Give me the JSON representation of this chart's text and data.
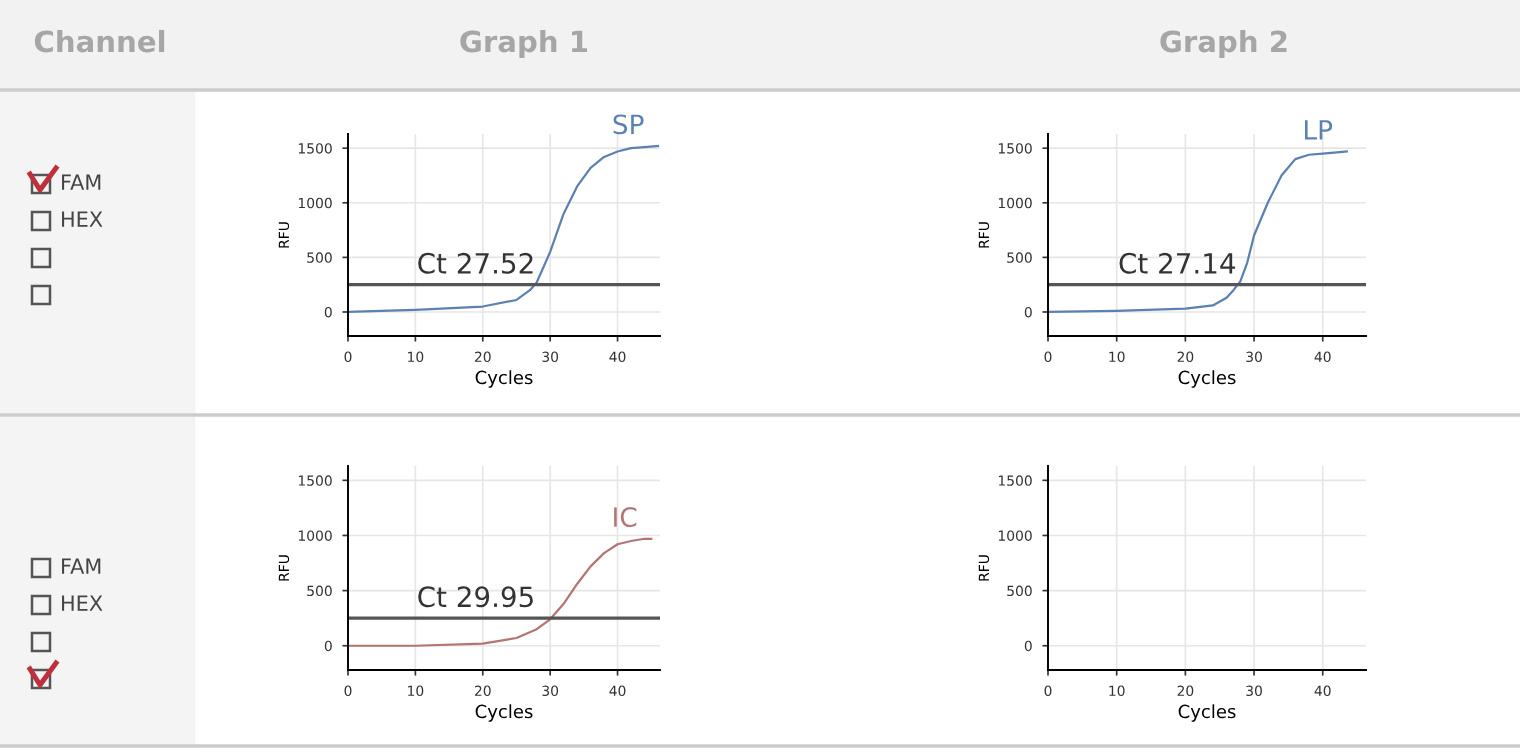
{
  "chart_data": [
    {
      "type": "other",
      "title": "Channel",
      "annotations": [
        "FAM",
        "HEX"
      ]
    },
    {
      "type": "line",
      "title": "Graph 1",
      "xlabel": "Cycles",
      "ylabel": "RFU",
      "xlim": [
        0,
        46.3
      ],
      "ylim": [
        -220,
        1630
      ],
      "xticks": [
        0,
        10,
        20,
        30,
        40
      ],
      "yticks": [
        0,
        500,
        1000,
        1500
      ],
      "grid": true,
      "series": [
        {
          "name": "SP",
          "color": "#5b80b2",
          "x": [
            0,
            10,
            20,
            25,
            27,
            28,
            30,
            32,
            34,
            36,
            38,
            40,
            42,
            44,
            46
          ],
          "values": [
            0,
            20,
            50,
            110,
            200,
            270,
            550,
            900,
            1150,
            1320,
            1420,
            1470,
            1500,
            1510,
            1520
          ]
        }
      ],
      "ref_lines": [
        {
          "axis": "y",
          "value": 250,
          "label": "Ct 27.52",
          "color": "#555555"
        }
      ]
    },
    {
      "type": "line",
      "title": "Graph 2",
      "xlabel": "Cycles",
      "ylabel": "RFU",
      "xlim": [
        0,
        46.3
      ],
      "ylim": [
        -220,
        1630
      ],
      "xticks": [
        0,
        10,
        20,
        30,
        40
      ],
      "yticks": [
        0,
        500,
        1000,
        1500
      ],
      "grid": true,
      "series": [
        {
          "name": "LP",
          "color": "#5b80b2",
          "x": [
            0,
            10,
            20,
            24,
            26,
            27,
            28,
            29,
            30,
            32,
            34,
            36,
            38,
            40,
            43.5
          ],
          "values": [
            0,
            10,
            30,
            60,
            130,
            200,
            280,
            450,
            700,
            1000,
            1250,
            1400,
            1440,
            1450,
            1470
          ]
        }
      ],
      "ref_lines": [
        {
          "axis": "y",
          "value": 250,
          "label": "Ct 27.14",
          "color": "#555555"
        }
      ]
    },
    {
      "type": "other",
      "annotations": [
        "FAM",
        "HEX"
      ]
    },
    {
      "type": "line",
      "xlabel": "Cycles",
      "ylabel": "RFU",
      "xlim": [
        0,
        46.3
      ],
      "ylim": [
        -220,
        1630
      ],
      "xticks": [
        0,
        10,
        20,
        30,
        40
      ],
      "yticks": [
        0,
        500,
        1000,
        1500
      ],
      "grid": true,
      "series": [
        {
          "name": "IC",
          "color": "#b37474",
          "x": [
            0,
            10,
            20,
            25,
            28,
            30,
            32,
            34,
            36,
            38,
            40,
            42,
            44,
            45
          ],
          "values": [
            0,
            0,
            20,
            70,
            150,
            240,
            380,
            560,
            720,
            840,
            920,
            950,
            970,
            970
          ]
        }
      ],
      "ref_lines": [
        {
          "axis": "y",
          "value": 250,
          "label": "Ct 29.95",
          "color": "#555555"
        }
      ]
    },
    {
      "type": "line",
      "xlabel": "Cycles",
      "ylabel": "RFU",
      "xlim": [
        0,
        46.3
      ],
      "ylim": [
        -220,
        1630
      ],
      "xticks": [
        0,
        10,
        20,
        30,
        40
      ],
      "yticks": [
        0,
        500,
        1000,
        1500
      ],
      "grid": true
    }
  ]
}
